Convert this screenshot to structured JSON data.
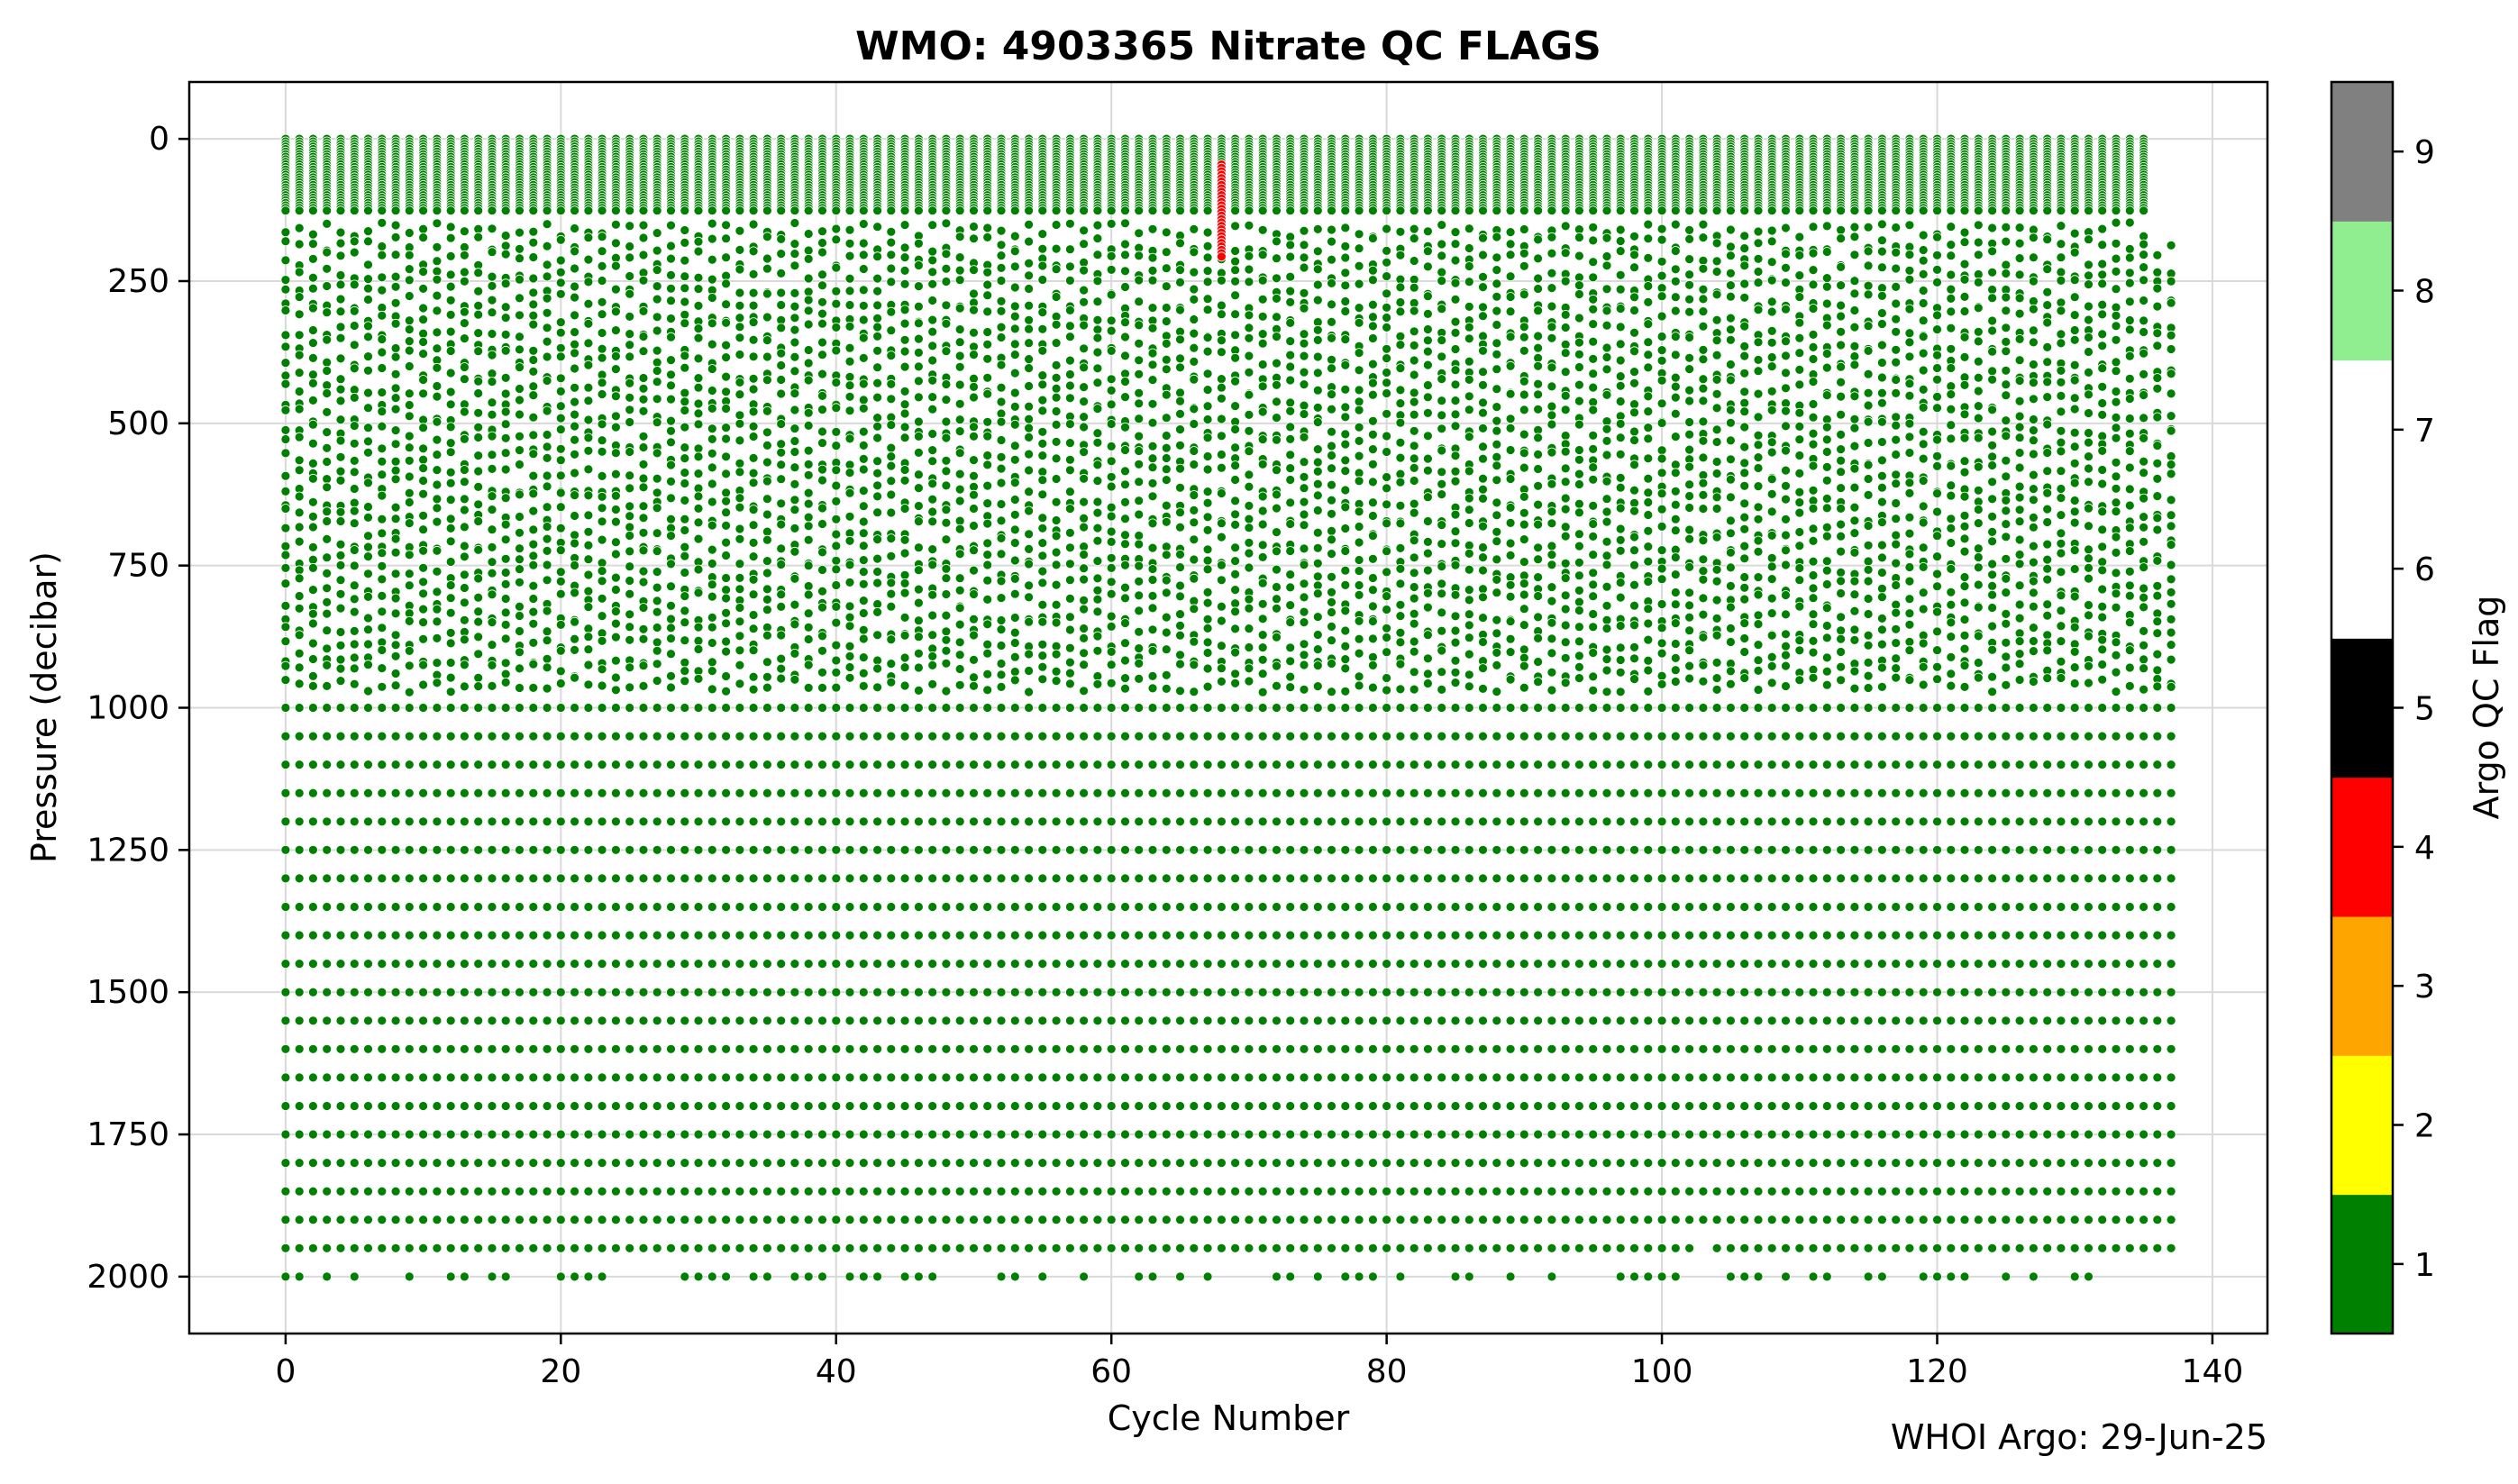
{
  "chart_data": {
    "type": "scatter",
    "title": "WMO: 4903365 Nitrate QC FLAGS",
    "xlabel": "Cycle Number",
    "ylabel": "Pressure  (decibar)",
    "xlim": [
      -7,
      144
    ],
    "ylim": [
      2100,
      -100
    ],
    "y_inverted": true,
    "grid": true,
    "x_ticks": [
      0,
      20,
      40,
      60,
      80,
      100,
      120,
      140
    ],
    "x_tick_labels": [
      "0",
      "20",
      "40",
      "60",
      "80",
      "100",
      "120",
      "140"
    ],
    "y_ticks": [
      0,
      250,
      500,
      750,
      1000,
      1250,
      1500,
      1750,
      2000
    ],
    "y_tick_labels": [
      "0",
      "250",
      "500",
      "750",
      "1000",
      "1250",
      "1500",
      "1750",
      "2000"
    ],
    "cycles": {
      "first": 0,
      "last": 137
    },
    "profile_description": "Each cycle is a vertical profile of nitrate samples from about 0 to 2000 decibar; dense sampling 0-140 dbar, ~25 dbar spacing to 1000 dbar, 50 dbar spacing below 1000 dbar.",
    "samples_series": [
      {
        "flag": 1,
        "color": "#008000",
        "pressure_range": [
          0,
          2000
        ],
        "cycles": "all"
      },
      {
        "flag": 4,
        "color": "#ff0000",
        "cycle": 68,
        "pressure_range": [
          45,
          210
        ]
      }
    ],
    "colorbar": {
      "label": "Argo QC Flag",
      "ticks": [
        1,
        2,
        3,
        4,
        5,
        6,
        7,
        8,
        9
      ],
      "tick_labels": [
        "1",
        "2",
        "3",
        "4",
        "5",
        "6",
        "7",
        "8",
        "9"
      ],
      "colors": [
        "#008000",
        "#ffff00",
        "#ffa500",
        "#ff0000",
        "#000000",
        "#ffffff",
        "#ffffff",
        "#90ee90",
        "#808080"
      ]
    }
  },
  "footer": {
    "credit": "WHOI Argo: 29-Jun-25"
  }
}
